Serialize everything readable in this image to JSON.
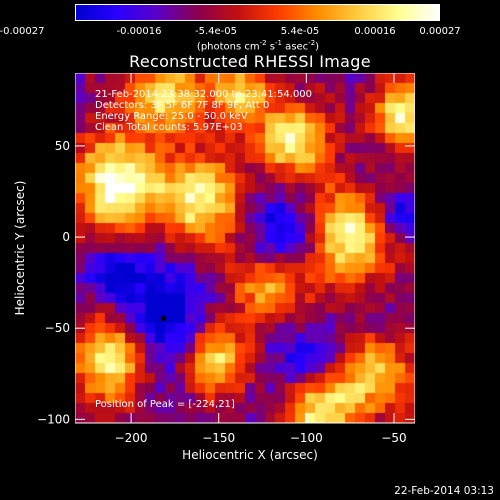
{
  "colorbar": {
    "stops": [
      "#0000d0",
      "#2a00ff",
      "#5a00c8",
      "#8a0050",
      "#c01010",
      "#ff3b00",
      "#ff8c00",
      "#ffcc40",
      "#ffff90",
      "#ffffff"
    ],
    "tick_labels": [
      "-0.00027",
      "-0.00016",
      "-5.4e-05",
      "5.4e-05",
      "0.00016",
      "0.00027"
    ],
    "units_prefix": "(photons cm",
    "units_exp1": "-2",
    "units_mid": " s",
    "units_exp2": "-1",
    "units_mid2": " asec",
    "units_exp3": "-2",
    "units_suffix": ")"
  },
  "chart_data": {
    "type": "heatmap",
    "title": "Reconstructed RHESSI Image",
    "xlabel": "Heliocentric X (arcsec)",
    "ylabel": "Heliocentric Y (arcsec)",
    "xlim": [
      -232,
      -38
    ],
    "ylim": [
      -102,
      90
    ],
    "xticks": [
      -200,
      -150,
      -100,
      -50
    ],
    "yticks": [
      -100,
      -50,
      0,
      50
    ],
    "xtick_labels": [
      "−200",
      "−150",
      "−100",
      "−50"
    ],
    "ytick_labels": [
      "−100",
      "−50",
      "0",
      "50"
    ],
    "peak_position": [
      -224,
      21
    ],
    "annotations": {
      "line1": "21-Feb-2014 23:38:32.000 to 23:41:54.000",
      "line2": "Detectors: 3F 5F 6F 7F 8F 9F, Att 0",
      "line3": "Energy Range: 25.0 - 50.0 keV",
      "line4": "Clean     Total counts: 5.97E+03",
      "peak": "Position of Peak = [-224,21]"
    }
  },
  "footer": {
    "timestamp": "22-Feb-2014 03:13"
  }
}
